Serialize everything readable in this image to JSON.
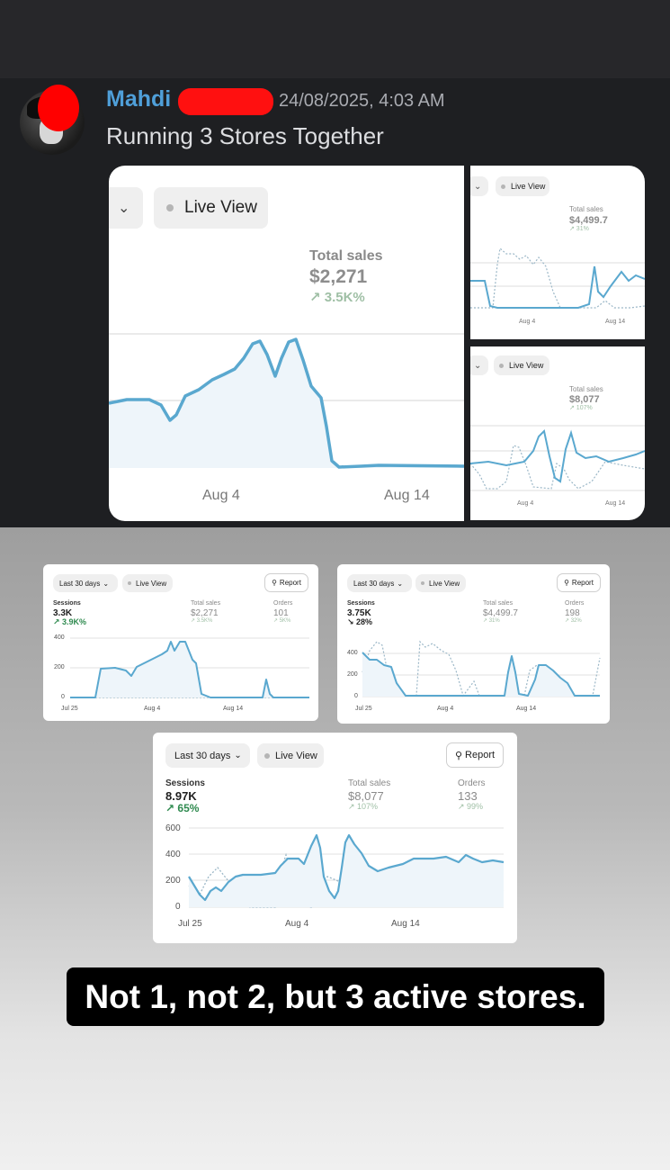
{
  "message": {
    "author": "Mahdi",
    "timestamp": "24/08/2025, 4:03 AM",
    "text": "Running 3 Stores Together"
  },
  "top_collage": {
    "big": {
      "live_view_label": "Live View",
      "total_sales_label": "Total sales",
      "total_sales_value": "$2,271",
      "change": "↗ 3.5K%",
      "x_ticks": [
        "Aug 4",
        "Aug 14"
      ]
    },
    "small_a": {
      "live_view_label": "Live View",
      "total_sales_label": "Total sales",
      "total_sales_value": "$4,499.7",
      "change": "↗ 31%",
      "x_ticks": [
        "Aug 4",
        "Aug 14"
      ]
    },
    "small_b": {
      "live_view_label": "Live View",
      "total_sales_label": "Total sales",
      "total_sales_value": "$8,077",
      "change": "↗ 107%",
      "x_ticks": [
        "Aug 4",
        "Aug 14"
      ]
    }
  },
  "store_cards": [
    {
      "range_label": "Last 30 days",
      "live_view_label": "Live View",
      "report_label": "Report",
      "sessions_label": "Sessions",
      "sessions_value": "3.3K",
      "sessions_change": "↗ 3.9K%",
      "total_sales_label": "Total sales",
      "total_sales_value": "$2,271",
      "total_sales_change": "↗ 3.5K%",
      "orders_label": "Orders",
      "orders_value": "101",
      "orders_change": "↗ 5K%",
      "y_ticks": [
        "400",
        "200",
        "0"
      ],
      "x_ticks": [
        "Jul 25",
        "Aug 4",
        "Aug 14"
      ]
    },
    {
      "range_label": "Last 30 days",
      "live_view_label": "Live View",
      "report_label": "Report",
      "sessions_label": "Sessions",
      "sessions_value": "3.75K",
      "sessions_change": "↘ 28%",
      "total_sales_label": "Total sales",
      "total_sales_value": "$4,499.7",
      "total_sales_change": "↗ 31%",
      "orders_label": "Orders",
      "orders_value": "198",
      "orders_change": "↗ 32%",
      "y_ticks": [
        "400",
        "200",
        "0"
      ],
      "x_ticks": [
        "Jul 25",
        "Aug 4",
        "Aug 14"
      ]
    },
    {
      "range_label": "Last 30 days",
      "live_view_label": "Live View",
      "report_label": "Report",
      "sessions_label": "Sessions",
      "sessions_value": "8.97K",
      "sessions_change": "↗ 65%",
      "total_sales_label": "Total sales",
      "total_sales_value": "$8,077",
      "total_sales_change": "↗ 107%",
      "orders_label": "Orders",
      "orders_value": "133",
      "orders_change": "↗ 99%",
      "y_ticks": [
        "600",
        "400",
        "200",
        "0"
      ],
      "x_ticks": [
        "Jul 25",
        "Aug 4",
        "Aug 14"
      ]
    }
  ],
  "caption": "Not 1, not 2, but 3 active stores.",
  "colors": {
    "line": "#5aa8cf",
    "fill": "#eef5fa",
    "dotted": "#9bb7c7",
    "positive": "#2f8a4f",
    "redaction": "#ff0000",
    "author": "#4f9fd9"
  },
  "icons": [
    "chevron-down-icon",
    "live-dot-icon",
    "report-icon",
    "arrow-up-right-icon",
    "arrow-down-right-icon"
  ]
}
